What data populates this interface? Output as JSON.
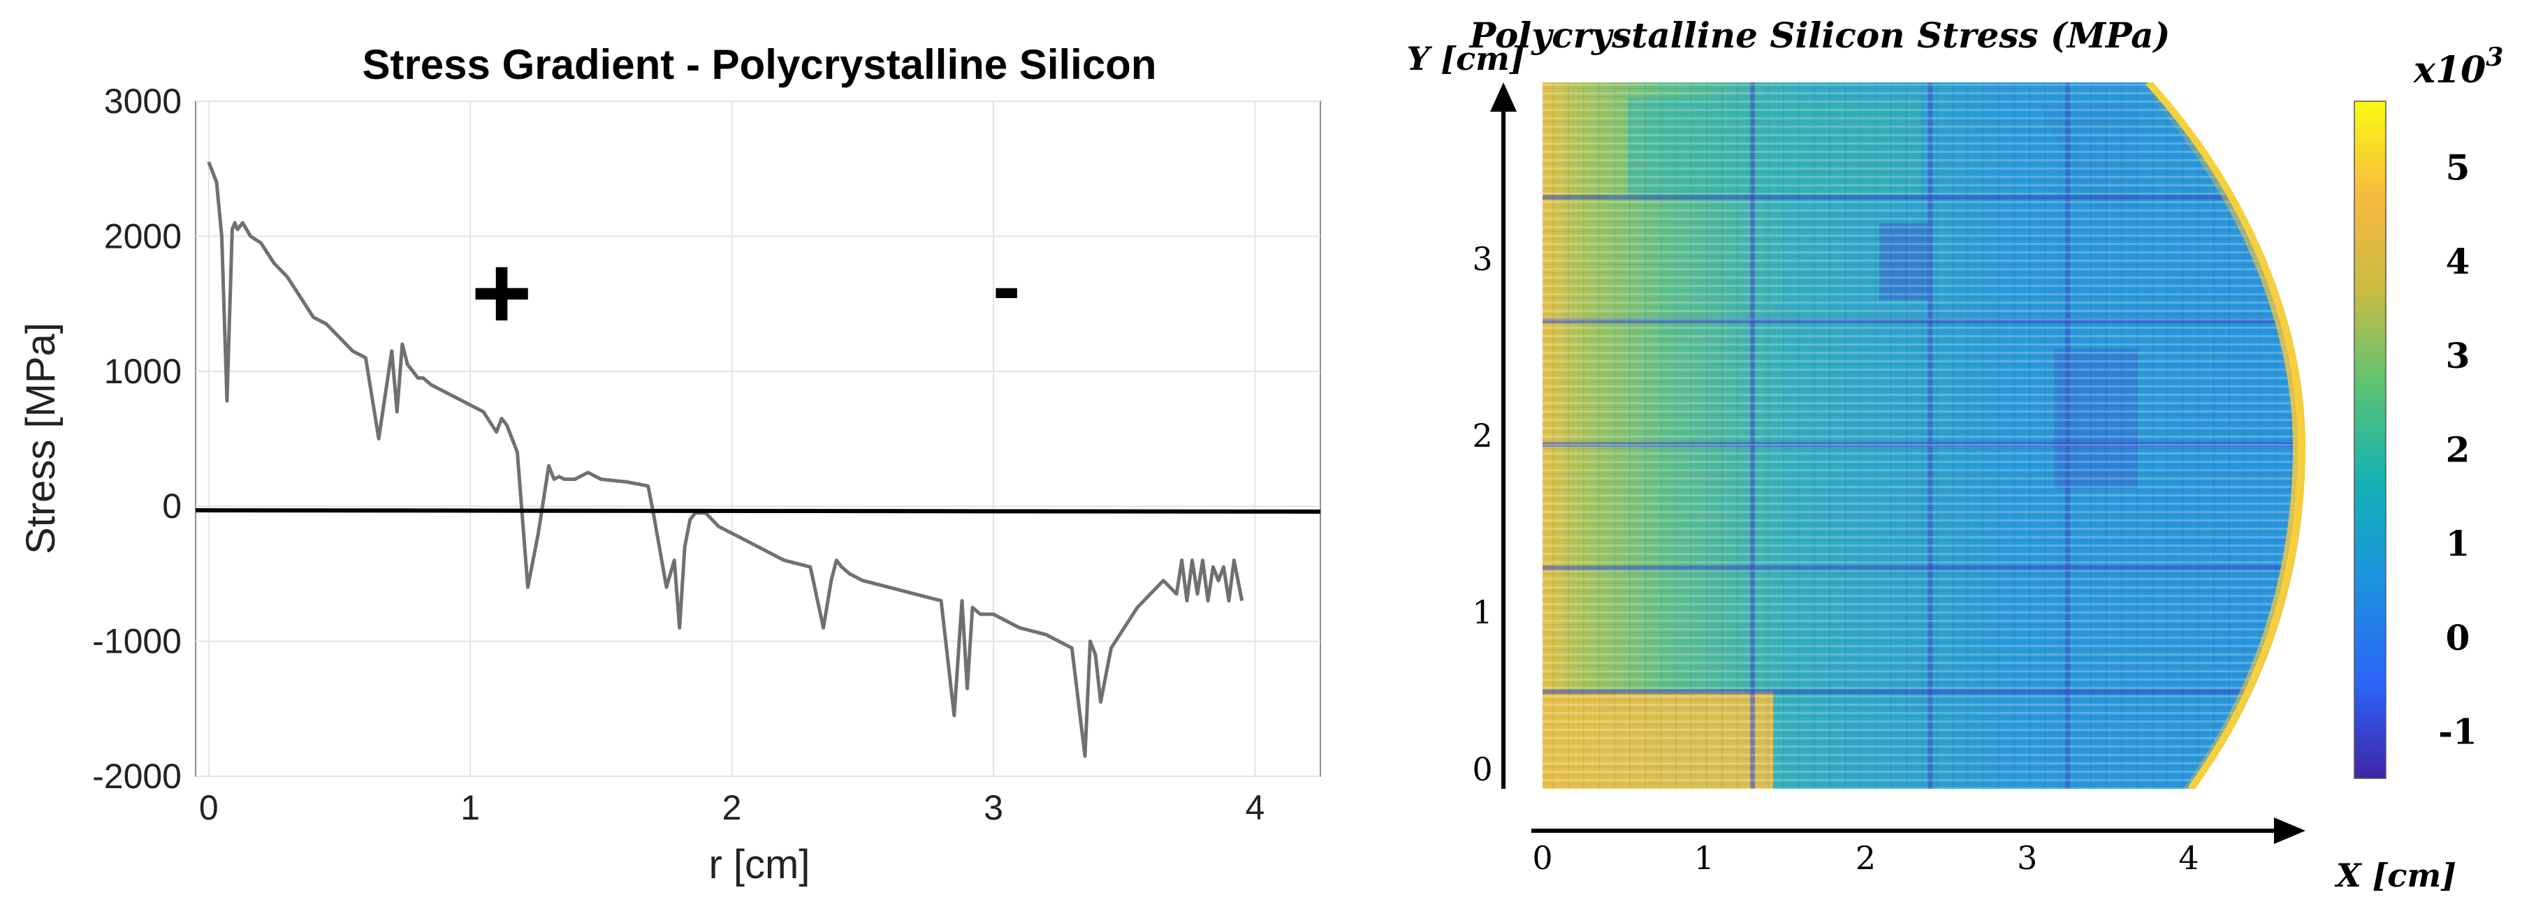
{
  "chart_data": [
    {
      "type": "line",
      "title": "Stress Gradient - Polycrystalline Silicon",
      "xlabel": "r [cm]",
      "ylabel": "Stress [MPa]",
      "xlim": [
        -0.05,
        4.25
      ],
      "ylim": [
        -2000,
        3000
      ],
      "x_ticks": [
        0,
        1,
        2,
        3,
        4
      ],
      "y_ticks": [
        -2000,
        -1000,
        0,
        1000,
        2000,
        3000
      ],
      "grid": true,
      "annotations": [
        {
          "text": "+",
          "x": 1.12,
          "y": 1600
        },
        {
          "text": "-",
          "x": 3.05,
          "y": 1600
        }
      ],
      "series": [
        {
          "name": "stress",
          "color": "#707070",
          "x": [
            0.0,
            0.03,
            0.05,
            0.07,
            0.09,
            0.1,
            0.11,
            0.13,
            0.16,
            0.2,
            0.25,
            0.3,
            0.35,
            0.4,
            0.45,
            0.5,
            0.55,
            0.6,
            0.65,
            0.7,
            0.72,
            0.74,
            0.76,
            0.78,
            0.8,
            0.82,
            0.85,
            0.9,
            1.0,
            1.05,
            1.1,
            1.12,
            1.14,
            1.16,
            1.18,
            1.22,
            1.26,
            1.3,
            1.32,
            1.34,
            1.36,
            1.4,
            1.45,
            1.5,
            1.6,
            1.68,
            1.7,
            1.75,
            1.78,
            1.8,
            1.82,
            1.84,
            1.86,
            1.9,
            1.95,
            2.0,
            2.05,
            2.1,
            2.2,
            2.3,
            2.35,
            2.38,
            2.4,
            2.42,
            2.45,
            2.5,
            2.6,
            2.7,
            2.8,
            2.85,
            2.88,
            2.9,
            2.92,
            2.95,
            3.0,
            3.05,
            3.1,
            3.2,
            3.3,
            3.35,
            3.37,
            3.39,
            3.41,
            3.45,
            3.5,
            3.55,
            3.6,
            3.65,
            3.7,
            3.72,
            3.74,
            3.76,
            3.78,
            3.8,
            3.82,
            3.84,
            3.86,
            3.88,
            3.9,
            3.92,
            3.95
          ],
          "values": [
            2550,
            2400,
            2000,
            780,
            2050,
            2100,
            2050,
            2100,
            2000,
            1950,
            1800,
            1700,
            1550,
            1400,
            1350,
            1250,
            1150,
            1100,
            500,
            1150,
            700,
            1200,
            1050,
            1000,
            950,
            950,
            900,
            850,
            750,
            700,
            550,
            650,
            600,
            500,
            400,
            -600,
            -200,
            300,
            200,
            220,
            200,
            200,
            250,
            200,
            180,
            150,
            -50,
            -600,
            -400,
            -900,
            -300,
            -100,
            -50,
            -50,
            -150,
            -200,
            -250,
            -300,
            -400,
            -450,
            -900,
            -550,
            -400,
            -450,
            -500,
            -550,
            -600,
            -650,
            -700,
            -1550,
            -700,
            -1350,
            -750,
            -800,
            -800,
            -850,
            -900,
            -950,
            -1050,
            -1850,
            -1000,
            -1100,
            -1450,
            -1050,
            -900,
            -750,
            -650,
            -550,
            -650,
            -400,
            -700,
            -400,
            -650,
            -400,
            -700,
            -450,
            -550,
            -450,
            -700,
            -400,
            -700
          ]
        },
        {
          "name": "zero line",
          "color": "#000000",
          "x": [
            -0.05,
            4.25
          ],
          "values": [
            -30,
            -40
          ]
        }
      ]
    },
    {
      "type": "heatmap",
      "title": "Polycrystalline Silicon Stress (MPa)",
      "xlabel": "X [cm]",
      "ylabel": "Y [cm]",
      "x_ticks": [
        0,
        1,
        2,
        3,
        4
      ],
      "y_ticks": [
        0,
        1,
        2,
        3
      ],
      "xlim": [
        0,
        4.8
      ],
      "ylim": [
        0,
        4.0
      ],
      "colorbar": {
        "label": "x10³",
        "label_base": "x10",
        "label_exp": "3",
        "ticks": [
          5,
          4,
          3,
          2,
          1,
          0,
          -1
        ],
        "range": [
          -1.5,
          5.7
        ],
        "colors": [
          "#3e26a8",
          "#2d64f8",
          "#1b95dd",
          "#14b2b2",
          "#5bc374",
          "#c9bb42",
          "#f8ba3e",
          "#f9fa14"
        ]
      },
      "features": {
        "background_level": 1.0,
        "edge_level": 4.7,
        "grid_lines_x": [
          1.3,
          2.4,
          3.25
        ],
        "grid_lines_y": [
          0.55,
          1.25,
          1.95,
          2.65,
          3.35
        ]
      }
    }
  ]
}
